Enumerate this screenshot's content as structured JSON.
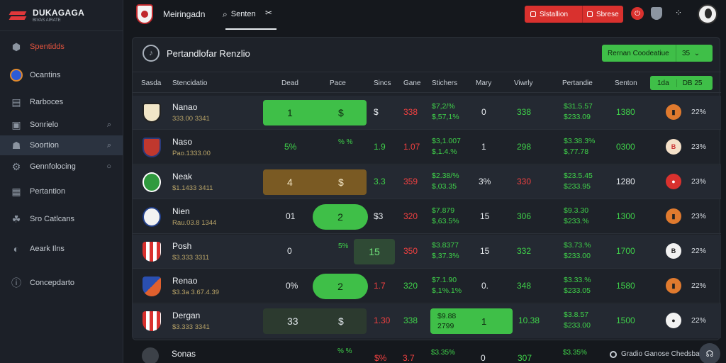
{
  "brand": {
    "name": "DUKAGAGA",
    "tagline": "BIVAS AIRATE"
  },
  "sidebar": {
    "items": [
      {
        "label": "Spentidds",
        "icon": "cube-icon"
      },
      {
        "label": "Ocantins",
        "icon": "club-badge-icon"
      },
      {
        "label": "Rarboces",
        "icon": "table-icon"
      },
      {
        "label": "Sonrielo",
        "icon": "video-icon",
        "trail": "Q"
      },
      {
        "label": "Soortion",
        "icon": "users-icon",
        "trail": "Q"
      },
      {
        "label": "Gennfolocing",
        "icon": "gear-icon",
        "trail": "O"
      },
      {
        "label": "Pertantion",
        "icon": "chart-icon"
      },
      {
        "label": "Sro Catlcans",
        "icon": "people-icon"
      },
      {
        "label": "Aeark Ilns",
        "icon": "globe-icon"
      },
      {
        "label": "Concepdarto",
        "icon": "info-icon"
      }
    ]
  },
  "topbar": {
    "title": "Meiringadn",
    "search_label": "Senten",
    "tool_icon": "tools-icon",
    "alert_btn": {
      "primary": "Slstallion",
      "secondary": "Sbrese"
    }
  },
  "panel": {
    "title": "Pertandlofar Renzlio",
    "action": {
      "primary": "Rernan Coodeatiue",
      "secondary": "35"
    }
  },
  "table": {
    "headers": [
      "Sasda",
      "Stencidatio",
      "Dead",
      "Pace",
      "Sincs",
      "Gane",
      "Stichers",
      "Mary",
      "Viwrly",
      "Pertandie",
      "Senton"
    ],
    "header_btn": {
      "a": "1da",
      "b": "DB 25"
    },
    "rows": [
      {
        "name": "Nanao",
        "sub": "333.00 3341",
        "dead": "1",
        "pace": "$",
        "sincs": "$",
        "gane": "338",
        "stich": [
          "$7,2/%",
          "$,57,1%"
        ],
        "mary": "0",
        "viwrly": "338",
        "pert": [
          "$31.5.57",
          "$233.09"
        ],
        "senton": "1380",
        "pct": "22%"
      },
      {
        "name": "Naso",
        "sub": "Pao.1333.00",
        "dead": "5%",
        "pace": "% %",
        "sincs": "1.9",
        "gane": "1.07",
        "stich": [
          "$3,1.007",
          "$,1.4.%"
        ],
        "mary": "1",
        "viwrly": "298",
        "pert": [
          "$3.38.3%",
          "$,77.78"
        ],
        "senton": "0300",
        "pct": "23%"
      },
      {
        "name": "Neak",
        "sub": "$1.1433 3411",
        "dead": "4",
        "pace": "$",
        "sincs": "3.3",
        "gane": "359",
        "stich": [
          "$2.38/%",
          "$,03.35"
        ],
        "mary": "3%",
        "viwrly": "330",
        "pert": [
          "$23.5.45",
          "$233.95"
        ],
        "senton": "1280",
        "pct": "23%"
      },
      {
        "name": "Nien",
        "sub": "Rau.03.8 1344",
        "dead": "01",
        "pace": "2",
        "sincs": "$3",
        "gane": "320",
        "stich": [
          "$7.879",
          "$,63.5%"
        ],
        "mary": "15",
        "viwrly": "306",
        "pert": [
          "$9.3.30",
          "$233.%"
        ],
        "senton": "1300",
        "pct": "23%"
      },
      {
        "name": "Posh",
        "sub": "$3.333 3311",
        "dead": "0",
        "pace": "5%",
        "sincs": "15",
        "gane": "350",
        "stich": [
          "$3.8377",
          "$,37.3%"
        ],
        "mary": "15",
        "viwrly": "332",
        "pert": [
          "$3.73.%",
          "$233.00"
        ],
        "senton": "1700",
        "pct": "22%"
      },
      {
        "name": "Renao",
        "sub": "$3.3a 3.67.4.39",
        "dead": "0%",
        "pace": "2",
        "sincs": "1.7",
        "gane": "320",
        "stich": [
          "$7.1.90",
          "$,1%.1%"
        ],
        "mary": "0.",
        "viwrly": "348",
        "pert": [
          "$3.33.%",
          "$233.05"
        ],
        "senton": "1580",
        "pct": "22%"
      },
      {
        "name": "Dergan",
        "sub": "$3.333 3341",
        "dead": "33",
        "pace": "$",
        "sincs": "1.30",
        "gane": "338",
        "stich": [
          "$9.88",
          "2799"
        ],
        "mary": "1",
        "viwrly": "10.38",
        "pert": [
          "$3.8.57",
          "$233.00"
        ],
        "senton": "1500",
        "pct": "22%"
      }
    ],
    "partial_row": {
      "name": "Sonas",
      "pace": "% %",
      "sincs": "$%",
      "gane": "3.7",
      "stich": "$3.35%",
      "mary": "0",
      "viwrly": "307",
      "pert": "$3.35%"
    }
  },
  "footer": {
    "note": "Gradio Ganose Chedsbas"
  },
  "colors": {
    "accent_green": "#3fbf48",
    "accent_red": "#d9312e",
    "background": "#15181d"
  }
}
